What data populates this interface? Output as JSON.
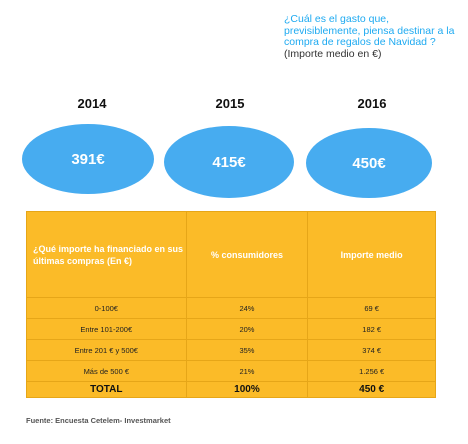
{
  "question": {
    "text": "¿Cuál es el gasto que, previsiblemente, piensa destinar a la compra de regalos de Navidad ?",
    "unit": "(Importe medio en €)"
  },
  "years": [
    {
      "year": "2014",
      "value_label": "391€"
    },
    {
      "year": "2015",
      "value_label": "415€"
    },
    {
      "year": "2016",
      "value_label": "450€"
    }
  ],
  "table": {
    "headers": [
      "¿Qué importe ha financiado en sus últimas compras (En €)",
      "% consumidores",
      "Importe medio"
    ],
    "rows": [
      [
        "0-100€",
        "24%",
        "69 €"
      ],
      [
        "Entre 101-200€",
        "20%",
        "182 €"
      ],
      [
        "Entre 201 € y 500€",
        "35%",
        "374 €"
      ],
      [
        "Más de 500 €",
        "21%",
        "1.256 €"
      ]
    ],
    "total": [
      "TOTAL",
      "100%",
      "450 €"
    ]
  },
  "source": "Fuente: Encuesta Cetelem- Investmarket",
  "colors": {
    "bubble": "#47acf0",
    "table": "#fbbb28",
    "question": "#1eaaf1"
  },
  "chart_data": {
    "type": "table",
    "categories": [
      "2014",
      "2015",
      "2016"
    ],
    "values": [
      391,
      415,
      450
    ],
    "table_rows": [
      {
        "range": "0-100€",
        "pct_consumers": 24,
        "avg_amount": 69
      },
      {
        "range": "Entre 101-200€",
        "pct_consumers": 20,
        "avg_amount": 182
      },
      {
        "range": "Entre 201 € y 500€",
        "pct_consumers": 35,
        "avg_amount": 374
      },
      {
        "range": "Más de 500 €",
        "pct_consumers": 21,
        "avg_amount": 1256
      }
    ],
    "total": {
      "pct_consumers": 100,
      "avg_amount": 450
    }
  }
}
